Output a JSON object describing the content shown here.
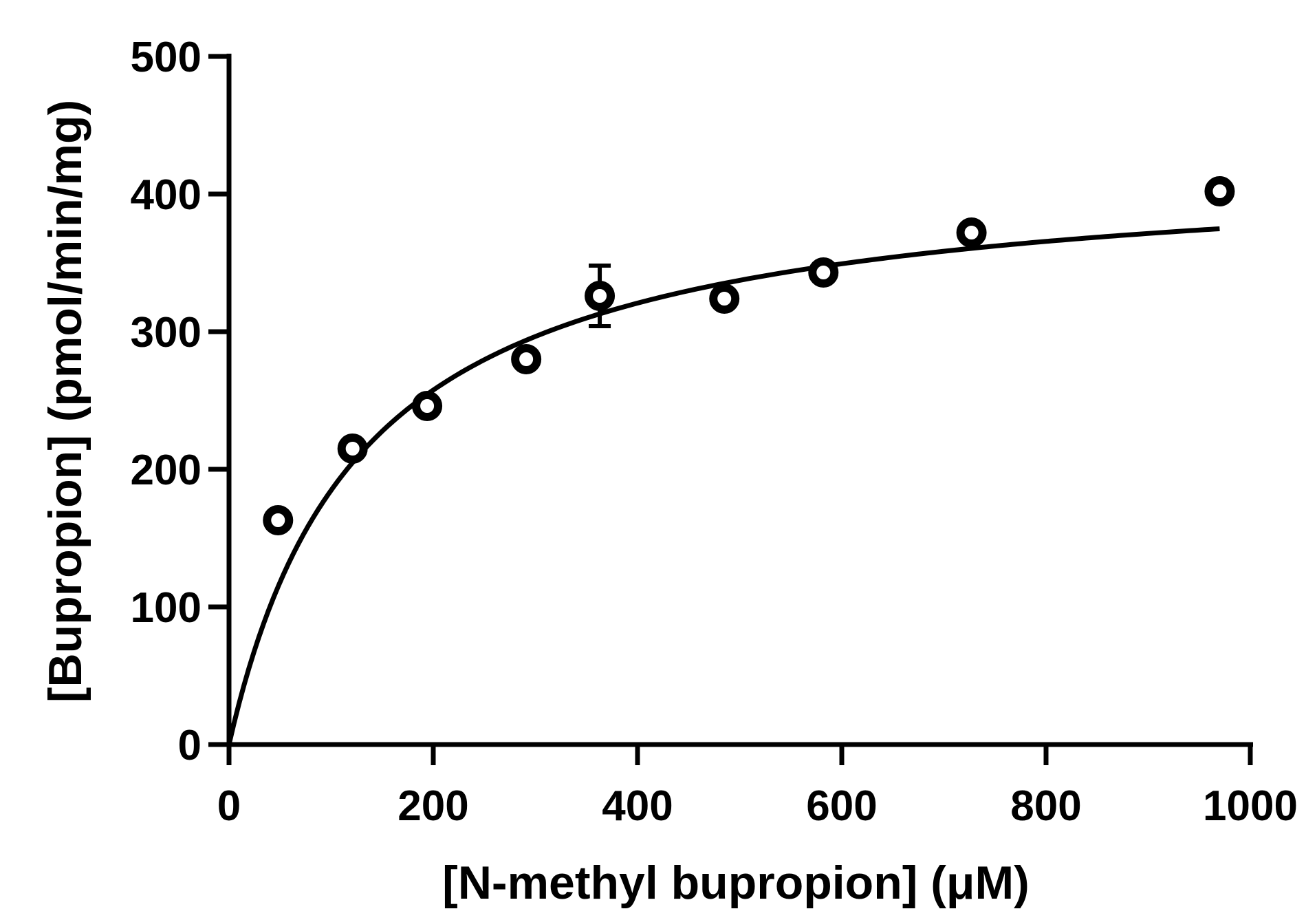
{
  "chart_data": {
    "type": "scatter",
    "title": "",
    "xlabel": "[N-methyl bupropion] (μM)",
    "ylabel": "[Bupropion] (pmol/min/mg)",
    "xlim": [
      0,
      1000
    ],
    "ylim": [
      0,
      500
    ],
    "x_ticks": [
      0,
      200,
      400,
      600,
      800,
      1000
    ],
    "y_ticks": [
      0,
      100,
      200,
      300,
      400,
      500
    ],
    "grid": false,
    "legend": "none",
    "series": [
      {
        "marker": "open-circle",
        "points": [
          {
            "x": 48,
            "y": 163,
            "err": 0
          },
          {
            "x": 121,
            "y": 215,
            "err": 4
          },
          {
            "x": 194,
            "y": 246,
            "err": 6
          },
          {
            "x": 291,
            "y": 280,
            "err": 5
          },
          {
            "x": 363,
            "y": 326,
            "err": 22
          },
          {
            "x": 485,
            "y": 324,
            "err": 0
          },
          {
            "x": 582,
            "y": 343,
            "err": 0
          },
          {
            "x": 727,
            "y": 372,
            "err": 0
          },
          {
            "x": 970,
            "y": 402,
            "err": 0
          }
        ]
      }
    ],
    "fit": {
      "model": "michaelis-menten",
      "vmax": 425,
      "km": 130,
      "x_range": [
        0,
        970
      ]
    },
    "colors": {
      "ink": "#000000",
      "background": "#ffffff"
    }
  }
}
